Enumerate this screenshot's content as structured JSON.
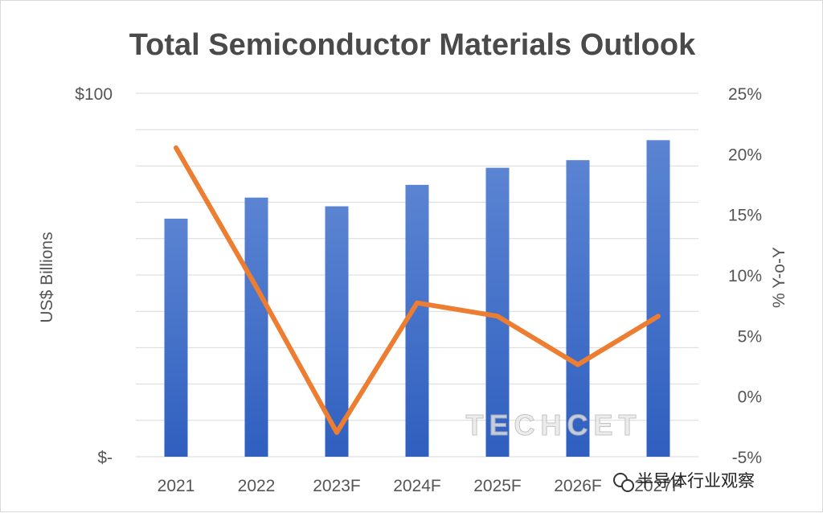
{
  "chart_data": {
    "type": "bar",
    "title": "Total Semiconductor Materials Outlook",
    "categories": [
      "2021",
      "2022",
      "2023F",
      "2024F",
      "2025F",
      "2026F",
      "2027F"
    ],
    "ylabel": "US$ Billions",
    "y2label": "% Y-o-Y",
    "yticks": [
      "$100",
      "$-"
    ],
    "ylim": [
      0,
      100
    ],
    "y2ticks": [
      "25%",
      "20%",
      "15%",
      "10%",
      "5%",
      "0%",
      "-5%"
    ],
    "y2lim": [
      -5,
      25
    ],
    "series": [
      {
        "values": [
          65.5,
          71.3,
          68.9,
          74.8,
          79.5,
          81.6,
          87.1
        ],
        "axis": "left",
        "kind": "bar",
        "color": "#4472c4"
      },
      {
        "values": [
          20.5,
          9.0,
          -3.0,
          7.7,
          6.6,
          2.6,
          6.6
        ],
        "axis": "right",
        "kind": "line",
        "color": "#ed7d31"
      }
    ],
    "grid": true,
    "legend": "none"
  },
  "watermark": "TECHCET",
  "badge": {
    "text": "半导体行业观察",
    "icon": "wechat-icon"
  }
}
